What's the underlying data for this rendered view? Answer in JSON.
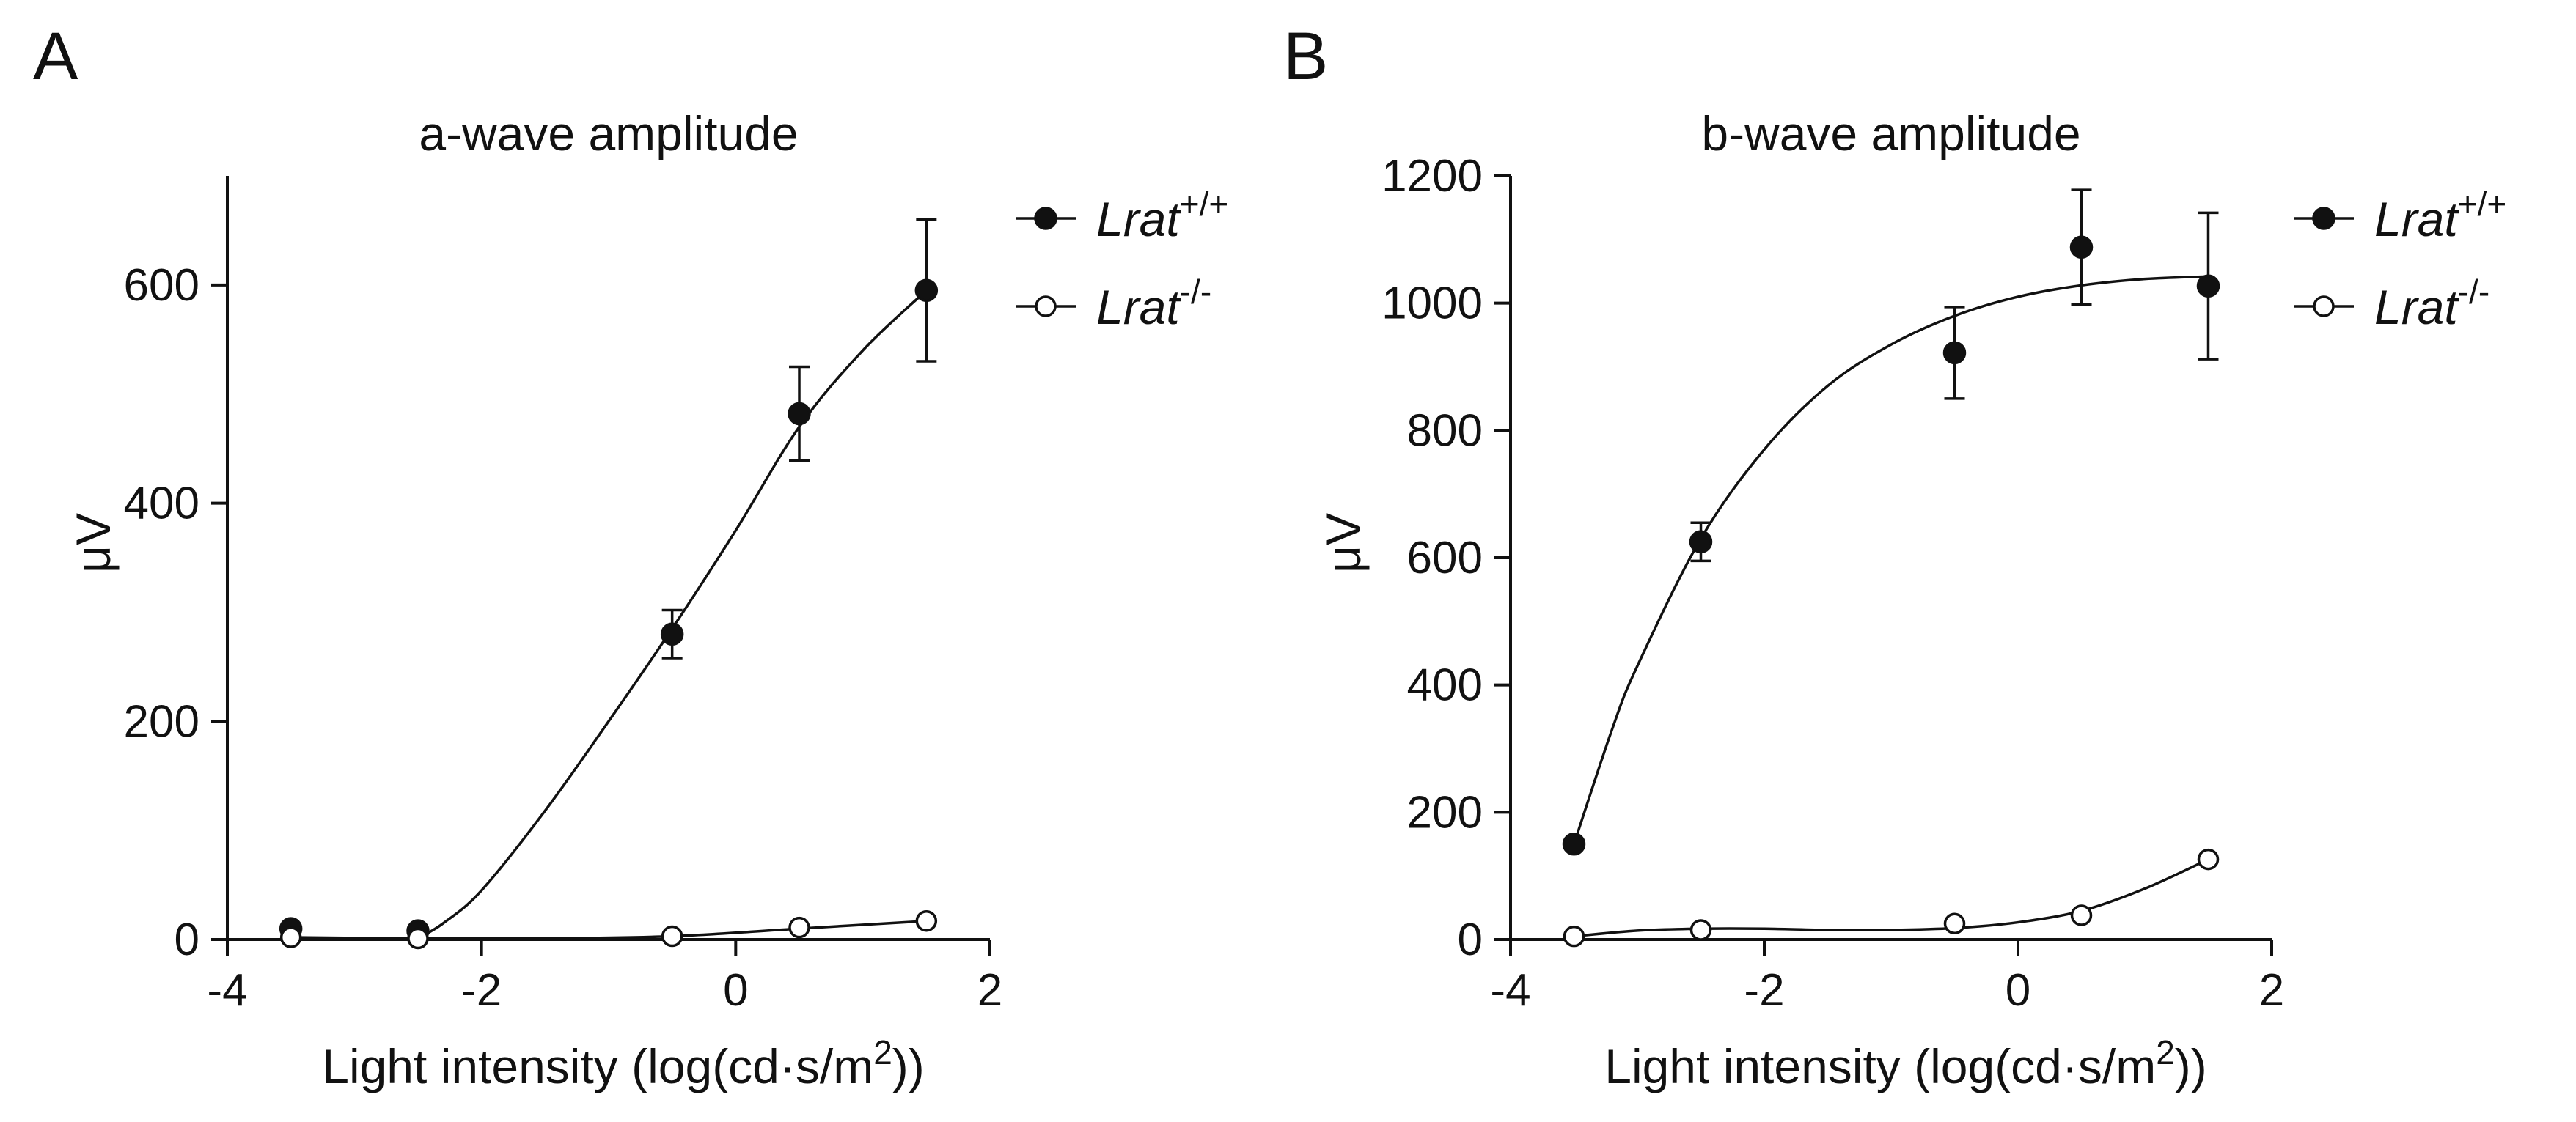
{
  "colors": {
    "ink": "#111111",
    "background": "#ffffff"
  },
  "chart_data": [
    {
      "type": "scatter",
      "panel": "A",
      "title": "a-wave amplitude",
      "xlabel": "Light intensity (log(cd·s/m",
      "xlabel_sup": "2",
      "xlabel_end": "))",
      "ylabel": "μV",
      "xlim": [
        -4,
        2
      ],
      "ylim": [
        0,
        700
      ],
      "xticks": [
        -4,
        -2,
        0,
        2
      ],
      "yticks": [
        0,
        200,
        400,
        600
      ],
      "legend_position": "top-right",
      "series": [
        {
          "name": "Lrat",
          "name_sup": "+/+",
          "marker": "filled-circle",
          "x": [
            -3.5,
            -2.5,
            -0.5,
            0.5,
            1.5
          ],
          "y": [
            10,
            8,
            280,
            482,
            595
          ],
          "err": [
            0,
            0,
            22,
            43,
            65
          ],
          "fit_x": [
            -2.5,
            -2.3,
            -2.0,
            -1.5,
            -1.0,
            -0.5,
            0.0,
            0.5,
            1.0,
            1.5
          ],
          "fit_y": [
            1,
            15,
            45,
            118,
            200,
            285,
            375,
            470,
            540,
            595
          ]
        },
        {
          "name": "Lrat",
          "name_sup": "-/-",
          "marker": "open-circle",
          "x": [
            -3.5,
            -2.5,
            -0.5,
            0.5,
            1.5
          ],
          "y": [
            2,
            1,
            3,
            11,
            17
          ],
          "err": [
            0,
            0,
            0,
            0,
            0
          ],
          "fit_x": [
            -3.5,
            -2.5,
            -1.5,
            -0.5,
            0.5,
            1.5
          ],
          "fit_y": [
            2,
            1,
            1,
            3,
            10,
            17
          ]
        }
      ]
    },
    {
      "type": "scatter",
      "panel": "B",
      "title": "b-wave amplitude",
      "xlabel": "Light intensity (log(cd·s/m",
      "xlabel_sup": "2",
      "xlabel_end": "))",
      "ylabel": "μV",
      "xlim": [
        -4,
        2
      ],
      "ylim": [
        0,
        1200
      ],
      "xticks": [
        -4,
        -2,
        0,
        2
      ],
      "yticks": [
        0,
        200,
        400,
        600,
        800,
        1000,
        1200
      ],
      "legend_position": "top-right",
      "series": [
        {
          "name": "Lrat",
          "name_sup": "+/+",
          "marker": "filled-circle",
          "x": [
            -3.5,
            -2.5,
            -0.5,
            0.5,
            1.5
          ],
          "y": [
            150,
            625,
            922,
            1088,
            1027
          ],
          "err": [
            0,
            30,
            72,
            90,
            115
          ],
          "fit_x": [
            -3.5,
            -3.2,
            -3.0,
            -2.5,
            -2.0,
            -1.5,
            -1.0,
            -0.5,
            0.0,
            0.5,
            1.0,
            1.5
          ],
          "fit_y": [
            150,
            330,
            430,
            630,
            770,
            870,
            935,
            980,
            1010,
            1028,
            1038,
            1042
          ]
        },
        {
          "name": "Lrat",
          "name_sup": "-/-",
          "marker": "open-circle",
          "x": [
            -3.5,
            -2.5,
            -0.5,
            0.5,
            1.5
          ],
          "y": [
            5,
            15,
            25,
            38,
            126
          ],
          "err": [
            0,
            0,
            0,
            0,
            0
          ],
          "fit_x": [
            -3.5,
            -3.0,
            -2.5,
            -2.0,
            -1.5,
            -1.0,
            -0.5,
            0.0,
            0.5,
            1.0,
            1.5
          ],
          "fit_y": [
            5,
            14,
            17,
            17,
            15,
            15,
            18,
            27,
            45,
            80,
            126
          ]
        }
      ]
    }
  ]
}
